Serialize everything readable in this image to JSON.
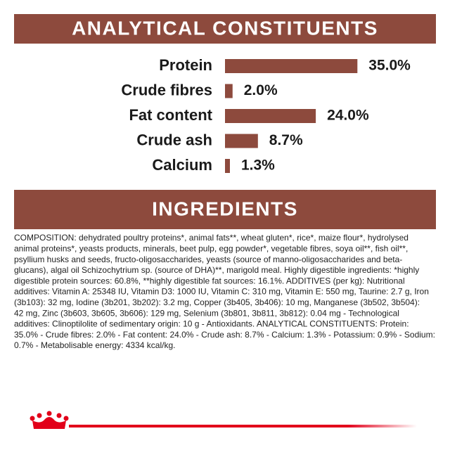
{
  "chart_data": {
    "type": "bar",
    "title": "ANALYTICAL CONSTITUENTS",
    "categories": [
      "Protein",
      "Crude fibres",
      "Fat content",
      "Crude ash",
      "Calcium"
    ],
    "values": [
      35.0,
      2.0,
      24.0,
      8.7,
      1.3
    ],
    "value_labels": [
      "35.0%",
      "2.0%",
      "24.0%",
      "8.7%",
      "1.3%"
    ],
    "color": "#8d4a3d"
  },
  "ingredients": {
    "title": "INGREDIENTS",
    "lines": [
      "COMPOSITION: dehydrated poultry proteins*, animal fats**, wheat gluten*, rice*, maize flour*, hydrolysed",
      "animal proteins*, yeasts products, minerals, beet pulp, egg powder*, vegetable fibres, soya oil**, fish oil**,",
      "psyllium husks and seeds, fructo-oligosaccharides, yeasts (source of manno-oligosaccharides and beta-",
      "glucans), algal oil Schizochytrium sp. (source of DHA)**, marigold meal. Highly digestible ingredients: *highly",
      "digestible protein sources: 60.8%, **highly digestible fat sources: 16.1%. ADDITIVES (per kg): Nutritional",
      "additives: Vitamin A: 25348 IU, Vitamin D3: 1000 IU, Vitamin C: 310 mg, Vitamin E: 550 mg, Taurine: 2.7 g, Iron",
      "(3b103): 32 mg, Iodine (3b201, 3b202): 3.2 mg, Copper (3b405, 3b406): 10 mg, Manganese (3b502, 3b504):",
      "42 mg, Zinc (3b603, 3b605, 3b606): 129 mg, Selenium (3b801, 3b811, 3b812): 0.04 mg - Technological",
      "additives: Clinoptilolite of sedimentary origin: 10 g - Antioxidants. ANALYTICAL CONSTITUENTS: Protein:",
      "35.0% - Crude fibres: 2.0% - Fat content: 24.0% - Crude ash: 8.7% - Calcium: 1.3% - Potassium: 0.9% - Sodium:",
      "0.7% - Metabolisable energy: 4334 kcal/kg."
    ]
  }
}
